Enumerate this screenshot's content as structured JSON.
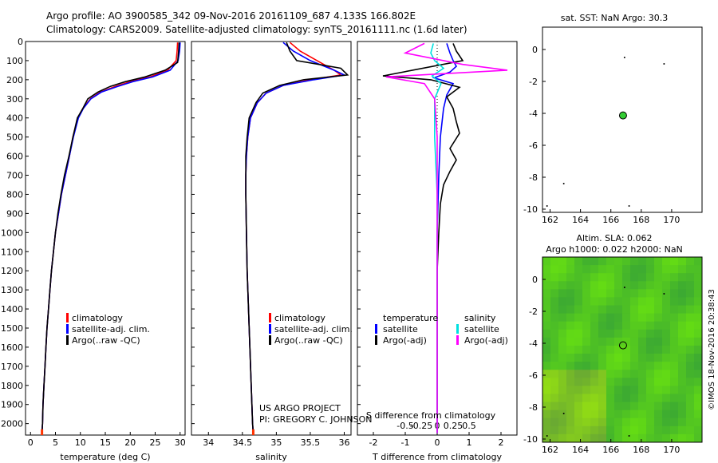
{
  "header": {
    "title_line1": "Argo profile: AO 3900585_342 09-Nov-2016 20161109_687 4.133S 166.802E",
    "title_line2": "Climatology: CARS2009. Satellite-adjusted climatology: synTS_20161111.nc (1.6d later)"
  },
  "colors": {
    "climatology": "#ff0000",
    "satellite": "#0000ff",
    "argo": "#000000",
    "salinity_satellite": "#00e0e0",
    "salinity_argo": "#ff00ff",
    "argo_marker": "#33cc33"
  },
  "chart_data": [
    {
      "type": "line",
      "panel": "temperature",
      "xlabel": "temperature (deg C)",
      "ylabel": "",
      "xlim": [
        -1,
        31
      ],
      "ylim": [
        2060,
        0
      ],
      "xticks": [
        0,
        5,
        10,
        15,
        20,
        25,
        30
      ],
      "yticks": [
        0,
        100,
        200,
        300,
        400,
        500,
        600,
        700,
        800,
        900,
        1000,
        1100,
        1200,
        1300,
        1400,
        1500,
        1600,
        1700,
        1800,
        1900,
        2000
      ],
      "legend": [
        "climatology",
        "satellite-adj. clim.",
        "Argo(..raw -QC)"
      ],
      "series": [
        {
          "name": "climatology",
          "color": "#ff0000",
          "points": [
            [
              29.5,
              5
            ],
            [
              29.4,
              50
            ],
            [
              29.2,
              100
            ],
            [
              27.5,
              150
            ],
            [
              24,
              185
            ],
            [
              20,
              210
            ],
            [
              17,
              235
            ],
            [
              14,
              265
            ],
            [
              12,
              300
            ],
            [
              10.5,
              350
            ],
            [
              9.5,
              400
            ],
            [
              8.5,
              500
            ],
            [
              7.8,
              600
            ],
            [
              7,
              700
            ],
            [
              6.2,
              800
            ],
            [
              5.6,
              900
            ],
            [
              5,
              1000
            ],
            [
              4.6,
              1100
            ],
            [
              4.2,
              1200
            ],
            [
              3.9,
              1300
            ],
            [
              3.6,
              1400
            ],
            [
              3.3,
              1500
            ],
            [
              3.1,
              1600
            ],
            [
              2.9,
              1700
            ],
            [
              2.7,
              1800
            ],
            [
              2.5,
              1900
            ],
            [
              2.4,
              2000
            ],
            [
              2.3,
              2050
            ]
          ]
        },
        {
          "name": "satellite-adj. clim.",
          "color": "#0000ff",
          "points": [
            [
              30,
              5
            ],
            [
              29.9,
              50
            ],
            [
              29.6,
              100
            ],
            [
              28,
              150
            ],
            [
              24.5,
              185
            ],
            [
              20.5,
              210
            ],
            [
              17.5,
              235
            ],
            [
              14.2,
              265
            ],
            [
              12.1,
              300
            ],
            [
              10.6,
              350
            ],
            [
              9.6,
              400
            ],
            [
              8.6,
              500
            ],
            [
              7.8,
              600
            ],
            [
              7,
              700
            ],
            [
              6.2,
              800
            ],
            [
              5.6,
              900
            ],
            [
              5,
              1000
            ],
            [
              4.6,
              1100
            ],
            [
              4.2,
              1200
            ],
            [
              3.9,
              1300
            ],
            [
              3.6,
              1400
            ],
            [
              3.3,
              1500
            ],
            [
              3.1,
              1600
            ],
            [
              2.9,
              1700
            ],
            [
              2.7,
              1800
            ],
            [
              2.5,
              1900
            ],
            [
              2.4,
              2000
            ],
            [
              2.3,
              2050
            ]
          ]
        },
        {
          "name": "Argo(..raw -QC)",
          "color": "#000000",
          "points": [
            [
              29.8,
              5
            ],
            [
              29.7,
              50
            ],
            [
              29.5,
              110
            ],
            [
              27,
              150
            ],
            [
              23,
              185
            ],
            [
              19,
              210
            ],
            [
              16,
              235
            ],
            [
              13.5,
              265
            ],
            [
              11.5,
              300
            ],
            [
              10.5,
              350
            ],
            [
              9.4,
              400
            ],
            [
              8.5,
              500
            ],
            [
              7.7,
              600
            ],
            [
              6.8,
              700
            ],
            [
              6.1,
              800
            ],
            [
              5.5,
              900
            ],
            [
              5,
              1000
            ],
            [
              4.6,
              1100
            ],
            [
              4.2,
              1200
            ],
            [
              3.9,
              1300
            ],
            [
              3.6,
              1400
            ],
            [
              3.3,
              1500
            ],
            [
              3.1,
              1600
            ],
            [
              2.9,
              1700
            ],
            [
              2.7,
              1800
            ],
            [
              2.5,
              1900
            ],
            [
              2.4,
              2000
            ],
            [
              2.3,
              2050
            ]
          ]
        }
      ]
    },
    {
      "type": "line",
      "panel": "salinity",
      "xlabel": "salinity",
      "ylabel": "",
      "xlim": [
        33.75,
        36.1
      ],
      "ylim": [
        2060,
        0
      ],
      "xticks": [
        34,
        34.5,
        35,
        35.5,
        36
      ],
      "legend": [
        "climatology",
        "satellite-adj. clim.",
        "Argo(..raw -QC)"
      ],
      "annotations": [
        "US ARGO PROJECT",
        "PI: GREGORY C. JOHNSON"
      ],
      "series": [
        {
          "name": "climatology",
          "color": "#ff0000",
          "points": [
            [
              35.2,
              5
            ],
            [
              35.35,
              50
            ],
            [
              35.6,
              100
            ],
            [
              35.85,
              150
            ],
            [
              35.95,
              175
            ],
            [
              35.5,
              200
            ],
            [
              35.1,
              230
            ],
            [
              34.85,
              270
            ],
            [
              34.72,
              320
            ],
            [
              34.62,
              400
            ],
            [
              34.58,
              500
            ],
            [
              34.56,
              600
            ],
            [
              34.55,
              700
            ],
            [
              34.55,
              800
            ],
            [
              34.56,
              1000
            ],
            [
              34.57,
              1200
            ],
            [
              34.59,
              1400
            ],
            [
              34.61,
              1600
            ],
            [
              34.63,
              1800
            ],
            [
              34.65,
              2000
            ],
            [
              34.66,
              2050
            ]
          ]
        },
        {
          "name": "satellite-adj. clim.",
          "color": "#0000ff",
          "points": [
            [
              35.1,
              5
            ],
            [
              35.25,
              50
            ],
            [
              35.5,
              100
            ],
            [
              35.85,
              150
            ],
            [
              36,
              175
            ],
            [
              35.55,
              200
            ],
            [
              35.1,
              230
            ],
            [
              34.85,
              270
            ],
            [
              34.72,
              320
            ],
            [
              34.62,
              400
            ],
            [
              34.58,
              500
            ],
            [
              34.56,
              600
            ],
            [
              34.55,
              700
            ],
            [
              34.55,
              800
            ],
            [
              34.56,
              1000
            ],
            [
              34.57,
              1200
            ],
            [
              34.59,
              1400
            ],
            [
              34.61,
              1600
            ],
            [
              34.63,
              1800
            ],
            [
              34.65,
              2000
            ],
            [
              34.66,
              2050
            ]
          ]
        },
        {
          "name": "Argo(..raw -QC)",
          "color": "#000000",
          "points": [
            [
              35.15,
              5
            ],
            [
              35.2,
              50
            ],
            [
              35.3,
              100
            ],
            [
              35.95,
              140
            ],
            [
              36.05,
              175
            ],
            [
              35.4,
              200
            ],
            [
              35.05,
              230
            ],
            [
              34.8,
              270
            ],
            [
              34.7,
              320
            ],
            [
              34.6,
              400
            ],
            [
              34.57,
              500
            ],
            [
              34.55,
              600
            ],
            [
              34.55,
              700
            ],
            [
              34.55,
              800
            ],
            [
              34.56,
              1000
            ],
            [
              34.57,
              1200
            ],
            [
              34.59,
              1400
            ],
            [
              34.61,
              1600
            ],
            [
              34.63,
              1800
            ],
            [
              34.65,
              2000
            ],
            [
              34.66,
              2050
            ]
          ]
        }
      ]
    },
    {
      "type": "line",
      "panel": "difference",
      "xlabel": "T difference from climatology",
      "top_label": "S difference from climatology",
      "xlim": [
        -2.5,
        2.5
      ],
      "ylim": [
        2060,
        0
      ],
      "xticks": [
        -2,
        -1,
        0,
        1,
        2
      ],
      "top_ticks": [
        "-0.5",
        "-0.25",
        "0",
        "0.25",
        "0.5"
      ],
      "legend": {
        "temperature": [
          "satellite",
          "Argo(-adj)"
        ],
        "salinity": [
          "satellite",
          "Argo(-adj)"
        ]
      },
      "series": [
        {
          "name": "T satellite",
          "color": "#0000ff",
          "points": [
            [
              0.3,
              10
            ],
            [
              0.4,
              60
            ],
            [
              0.5,
              100
            ],
            [
              0.6,
              130
            ],
            [
              0.4,
              160
            ],
            [
              -0.1,
              190
            ],
            [
              0.5,
              220
            ],
            [
              0.3,
              280
            ],
            [
              0.2,
              350
            ],
            [
              0.1,
              500
            ],
            [
              0.05,
              700
            ],
            [
              0,
              1000
            ],
            [
              0,
              1500
            ],
            [
              0,
              2050
            ]
          ]
        },
        {
          "name": "T Argo(-adj)",
          "color": "#000000",
          "points": [
            [
              0.5,
              10
            ],
            [
              0.6,
              50
            ],
            [
              0.8,
              100
            ],
            [
              -1.7,
              180
            ],
            [
              -0.2,
              200
            ],
            [
              0.7,
              240
            ],
            [
              0.3,
              290
            ],
            [
              0.5,
              350
            ],
            [
              0.6,
              420
            ],
            [
              0.7,
              480
            ],
            [
              0.4,
              560
            ],
            [
              0.6,
              620
            ],
            [
              0.4,
              680
            ],
            [
              0.2,
              750
            ],
            [
              0.1,
              850
            ],
            [
              0.05,
              1000
            ],
            [
              0,
              1200
            ],
            [
              0,
              1600
            ],
            [
              0,
              2050
            ]
          ]
        },
        {
          "name": "S satellite",
          "color": "#00e0e0",
          "points": [
            [
              -0.03,
              10
            ],
            [
              -0.05,
              60
            ],
            [
              -0.02,
              100
            ],
            [
              0.05,
              140
            ],
            [
              -0.04,
              180
            ],
            [
              0.03,
              220
            ],
            [
              -0.02,
              300
            ],
            [
              -0.02,
              500
            ],
            [
              0,
              800
            ],
            [
              0,
              1200
            ],
            [
              0,
              2050
            ]
          ]
        },
        {
          "name": "S Argo(-adj)",
          "color": "#ff00ff",
          "points": [
            [
              -0.1,
              10
            ],
            [
              -0.25,
              60
            ],
            [
              0.2,
              120
            ],
            [
              0.55,
              150
            ],
            [
              -0.4,
              185
            ],
            [
              -0.1,
              220
            ],
            [
              -0.02,
              300
            ],
            [
              0,
              500
            ],
            [
              0,
              1000
            ],
            [
              0,
              2050
            ]
          ]
        }
      ]
    },
    {
      "type": "scatter",
      "panel": "sat_sst_map",
      "title": "sat. SST: NaN Argo: 30.3",
      "xlim": [
        161.5,
        172
      ],
      "ylim": [
        -10.2,
        1.4
      ],
      "xticks": [
        162,
        164,
        166,
        168,
        170
      ],
      "yticks": [
        0,
        -2,
        -4,
        -6,
        -8,
        -10
      ],
      "argo_position": [
        166.8,
        -4.13
      ],
      "marker_color": "#33cc33"
    },
    {
      "type": "heatmap",
      "panel": "altimetry_map",
      "title": "Altim. SLA: 0.062",
      "subtitle": "Argo h1000: 0.022 h2000: NaN",
      "side_label": "©IMOS 18-Nov-2016 20:38:43",
      "xlim": [
        161.5,
        172
      ],
      "ylim": [
        -10.2,
        1.4
      ],
      "xticks": [
        162,
        164,
        166,
        168,
        170
      ],
      "yticks": [
        0,
        -2,
        -4,
        -6,
        -8,
        -10
      ],
      "argo_position": [
        166.8,
        -4.13
      ]
    }
  ]
}
